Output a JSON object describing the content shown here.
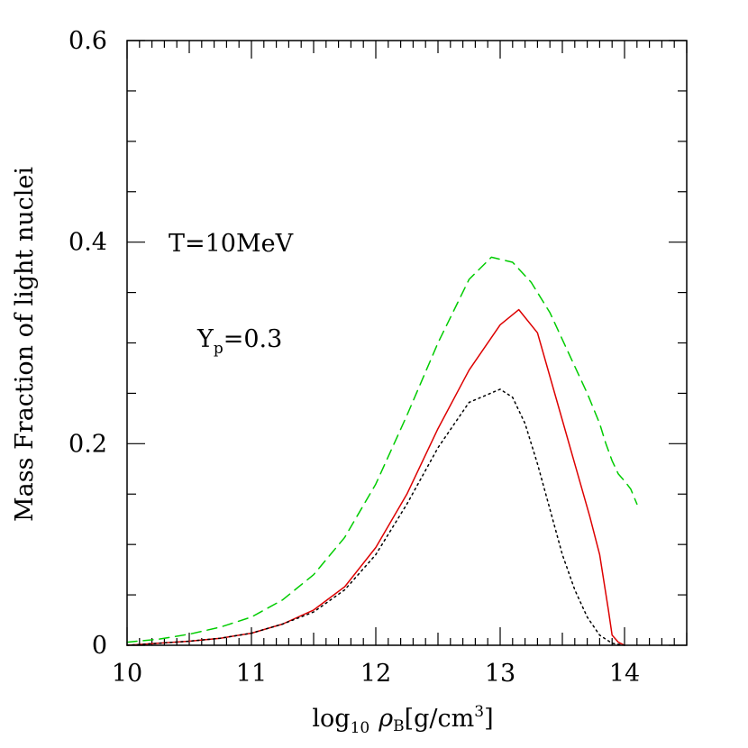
{
  "chart_data": {
    "type": "line",
    "title": "",
    "xlabel": {
      "prefix": "log",
      "prefix_sub": "10",
      "var": "ρ",
      "var_sub": "B",
      "unit": "[g/cm",
      "unit_sup": "3",
      "unit_end": "]"
    },
    "ylabel": "Mass Fraction of light nuclei",
    "xlim": [
      10,
      14.5
    ],
    "ylim": [
      0,
      0.6
    ],
    "xticks": [
      "10",
      "11",
      "12",
      "13",
      "14"
    ],
    "yticks": [
      "0",
      "0.2",
      "0.4",
      "0.6"
    ],
    "annotations": {
      "temperature": "T=10MeV",
      "yp_main": "Y",
      "yp_sub": "p",
      "yp_value": "=0.3"
    },
    "series": [
      {
        "color": "#00cc00",
        "style": "dashed",
        "x": [
          10.0,
          10.25,
          10.5,
          10.75,
          11.0,
          11.25,
          11.5,
          11.75,
          12.0,
          12.25,
          12.5,
          12.75,
          12.93,
          13.1,
          13.25,
          13.4,
          13.55,
          13.7,
          13.8,
          13.85,
          13.9,
          13.95,
          14.0,
          14.05,
          14.1
        ],
        "y": [
          0.003,
          0.006,
          0.011,
          0.018,
          0.028,
          0.045,
          0.07,
          0.107,
          0.16,
          0.228,
          0.3,
          0.363,
          0.385,
          0.38,
          0.36,
          0.33,
          0.29,
          0.25,
          0.22,
          0.2,
          0.183,
          0.17,
          0.163,
          0.155,
          0.14
        ]
      },
      {
        "color": "#dd0000",
        "style": "solid",
        "x": [
          10.0,
          10.25,
          10.5,
          10.75,
          11.0,
          11.25,
          11.5,
          11.75,
          12.0,
          12.25,
          12.5,
          12.75,
          13.0,
          13.15,
          13.3,
          13.45,
          13.6,
          13.72,
          13.8,
          13.87,
          13.9,
          13.95,
          14.0
        ],
        "y": [
          0.0,
          0.002,
          0.004,
          0.007,
          0.012,
          0.021,
          0.035,
          0.058,
          0.097,
          0.15,
          0.215,
          0.273,
          0.318,
          0.333,
          0.31,
          0.245,
          0.18,
          0.128,
          0.09,
          0.035,
          0.01,
          0.003,
          0.0
        ]
      },
      {
        "color": "#000000",
        "style": "dotted",
        "x": [
          10.0,
          10.25,
          10.5,
          10.75,
          11.0,
          11.25,
          11.5,
          11.75,
          12.0,
          12.25,
          12.5,
          12.75,
          13.0,
          13.1,
          13.2,
          13.3,
          13.4,
          13.5,
          13.6,
          13.7,
          13.8,
          13.9,
          14.0
        ],
        "y": [
          0.0,
          0.002,
          0.004,
          0.007,
          0.012,
          0.021,
          0.033,
          0.055,
          0.09,
          0.14,
          0.196,
          0.241,
          0.254,
          0.246,
          0.22,
          0.18,
          0.135,
          0.09,
          0.055,
          0.028,
          0.01,
          0.002,
          0.0
        ]
      }
    ]
  }
}
